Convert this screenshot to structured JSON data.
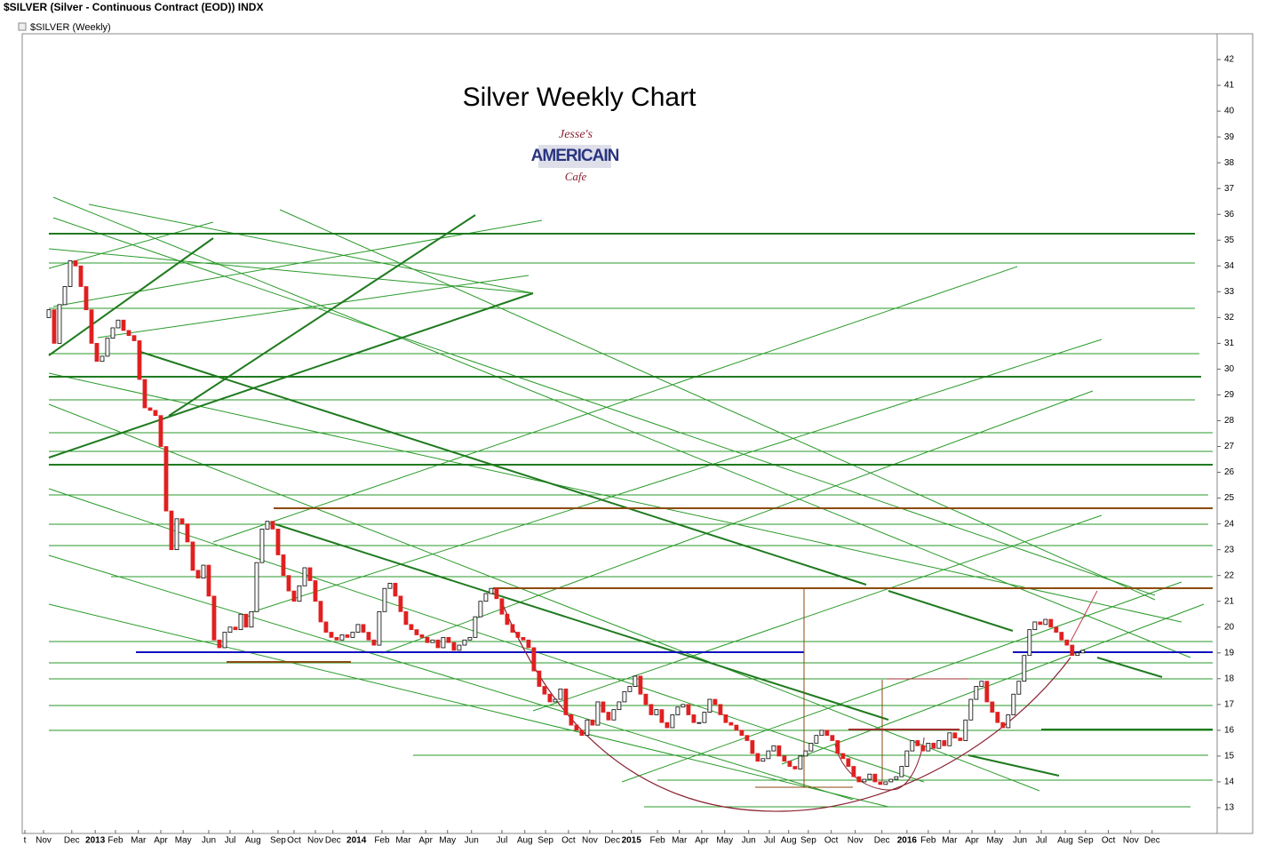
{
  "chart_data": {
    "type": "candlestick",
    "header": "$SILVER (Silver - Continuous Contract (EOD)) INDX",
    "subheader": "$SILVER (Weekly)",
    "title": "Silver Weekly Chart",
    "logo": {
      "top": "Jesse's",
      "middle": "AMERICAIN",
      "bottom": "Cafe"
    },
    "up_color": "#ffffff",
    "down_color": "#e02020",
    "open": [
      32.0,
      32.3,
      31.0,
      32.5,
      33.2,
      34.2,
      34.0,
      33.2,
      32.3,
      31.0,
      30.3,
      30.5,
      31.2,
      31.6,
      31.9,
      31.5,
      31.3,
      31.1,
      29.6,
      28.5,
      28.4,
      28.2,
      27.0,
      24.5,
      23.0,
      24.2,
      24.0,
      23.3,
      22.2,
      21.9,
      22.4,
      21.2,
      19.5,
      19.2,
      19.8,
      20.0,
      19.9,
      20.5,
      20.0,
      20.6,
      22.5,
      23.8,
      24.1,
      23.8,
      22.8,
      22.0,
      21.4,
      21.0,
      21.6,
      22.3,
      21.8,
      21.0,
      20.2,
      19.8,
      19.6,
      19.5,
      19.7,
      19.6,
      19.8,
      20.1,
      19.8,
      19.5,
      19.3,
      20.6,
      21.5,
      21.7,
      21.2,
      20.6,
      20.1,
      19.9,
      19.7,
      19.6,
      19.4,
      19.5,
      19.2,
      19.6,
      19.4,
      19.1,
      19.3,
      19.5,
      19.6,
      20.4,
      21.0,
      21.3,
      21.5,
      21.1,
      20.5,
      20.1,
      19.8,
      19.6,
      19.5,
      19.2,
      18.3,
      17.7,
      17.4,
      17.1,
      17.2,
      17.6,
      16.6,
      16.2,
      16.0,
      15.8,
      16.4,
      16.2,
      17.1,
      16.7,
      16.4,
      16.8,
      17.1,
      17.5,
      17.7,
      18.1,
      17.4,
      17.0,
      16.6,
      16.8,
      16.3,
      16.1,
      16.6,
      16.9,
      17.0,
      16.6,
      16.3,
      16.3,
      16.7,
      17.2,
      17.0,
      16.6,
      16.3,
      16.2,
      16.0,
      15.8,
      15.6,
      15.1,
      14.8,
      14.9,
      15.2,
      15.4,
      15.0,
      14.8,
      14.6,
      14.5,
      15.0,
      15.2,
      15.5,
      15.8,
      16.0,
      15.8,
      15.6,
      15.1,
      14.9,
      14.6,
      14.2,
      14.0,
      14.1,
      14.3,
      14.0,
      13.9,
      14.0,
      14.1,
      14.2,
      14.6,
      15.2,
      15.6,
      15.4,
      15.2,
      15.5,
      15.3,
      15.6,
      15.4,
      15.9,
      15.7,
      15.6,
      16.4,
      17.2,
      17.7,
      17.9,
      17.1,
      16.7,
      16.3,
      16.1,
      16.6,
      17.4,
      17.9,
      18.9,
      19.9,
      20.2,
      20.1,
      20.3,
      20.0,
      19.8,
      19.5,
      19.3,
      18.9,
      19.0
    ],
    "close": [
      32.3,
      31.0,
      32.5,
      33.2,
      34.2,
      34.0,
      33.2,
      32.3,
      31.0,
      30.3,
      30.5,
      31.2,
      31.6,
      31.9,
      31.5,
      31.3,
      31.1,
      29.6,
      28.5,
      28.4,
      28.2,
      27.0,
      24.5,
      23.0,
      24.2,
      24.0,
      23.3,
      22.2,
      21.9,
      22.4,
      21.2,
      19.5,
      19.2,
      19.8,
      20.0,
      19.9,
      20.5,
      20.0,
      20.6,
      22.5,
      23.8,
      24.1,
      23.8,
      22.8,
      22.0,
      21.4,
      21.0,
      21.6,
      22.3,
      21.8,
      21.0,
      20.2,
      19.8,
      19.6,
      19.5,
      19.7,
      19.6,
      19.8,
      20.1,
      19.8,
      19.5,
      19.3,
      20.6,
      21.5,
      21.7,
      21.2,
      20.6,
      20.1,
      19.9,
      19.7,
      19.6,
      19.4,
      19.5,
      19.2,
      19.6,
      19.4,
      19.1,
      19.3,
      19.5,
      19.6,
      20.4,
      21.0,
      21.3,
      21.5,
      21.1,
      20.5,
      20.1,
      19.8,
      19.6,
      19.5,
      19.2,
      18.3,
      17.7,
      17.4,
      17.1,
      17.2,
      17.6,
      16.6,
      16.2,
      16.0,
      15.8,
      16.4,
      16.2,
      17.1,
      16.7,
      16.4,
      16.8,
      17.1,
      17.5,
      17.7,
      18.1,
      17.4,
      17.0,
      16.6,
      16.8,
      16.3,
      16.1,
      16.6,
      16.9,
      17.0,
      16.6,
      16.3,
      16.3,
      16.7,
      17.2,
      17.0,
      16.6,
      16.3,
      16.2,
      16.0,
      15.8,
      15.6,
      15.1,
      14.8,
      14.9,
      15.2,
      15.4,
      15.0,
      14.8,
      14.6,
      14.5,
      15.0,
      15.2,
      15.5,
      15.8,
      16.0,
      15.8,
      15.6,
      15.1,
      14.9,
      14.6,
      14.2,
      14.0,
      14.1,
      14.3,
      14.0,
      13.9,
      14.0,
      14.1,
      14.2,
      14.6,
      15.2,
      15.6,
      15.4,
      15.2,
      15.5,
      15.3,
      15.6,
      15.4,
      15.9,
      15.7,
      15.6,
      16.4,
      17.2,
      17.7,
      17.9,
      17.1,
      16.7,
      16.3,
      16.1,
      16.6,
      17.4,
      17.9,
      18.9,
      19.9,
      20.2,
      20.1,
      20.3,
      20.0,
      19.8,
      19.5,
      19.3,
      18.9,
      19.0,
      19.1
    ],
    "xlim": [
      -5,
      219.2
    ],
    "ylim": [
      12,
      43
    ],
    "yticks": [
      13,
      14,
      15,
      16,
      17,
      18,
      19,
      20,
      21,
      22,
      23,
      24,
      25,
      26,
      27,
      28,
      29,
      30,
      31,
      32,
      33,
      34,
      35,
      36,
      37,
      38,
      39,
      40,
      41,
      42
    ],
    "xticks": [
      {
        "value": -4.5,
        "label": "t"
      },
      {
        "value": -1,
        "label": "Nov"
      },
      {
        "value": 4.3,
        "label": "Dec"
      },
      {
        "value": 8.7,
        "label": "2013"
      },
      {
        "value": 12.5,
        "label": "Feb"
      },
      {
        "value": 16.8,
        "label": "Mar"
      },
      {
        "value": 21,
        "label": "Apr"
      },
      {
        "value": 25.2,
        "label": "May"
      },
      {
        "value": 30,
        "label": "Jun"
      },
      {
        "value": 34,
        "label": "Jul"
      },
      {
        "value": 38.3,
        "label": "Aug"
      },
      {
        "value": 43,
        "label": "Sep"
      },
      {
        "value": 46,
        "label": "Oct"
      },
      {
        "value": 50,
        "label": "Nov"
      },
      {
        "value": 53.3,
        "label": "Dec"
      },
      {
        "value": 57.7,
        "label": "2014"
      },
      {
        "value": 62.5,
        "label": "Feb"
      },
      {
        "value": 66.5,
        "label": "Mar"
      },
      {
        "value": 70.7,
        "label": "Apr"
      },
      {
        "value": 74.8,
        "label": "May"
      },
      {
        "value": 79.3,
        "label": "Jun"
      },
      {
        "value": 85,
        "label": "Jul"
      },
      {
        "value": 89.3,
        "label": "Aug"
      },
      {
        "value": 93.2,
        "label": "Sep"
      },
      {
        "value": 97.5,
        "label": "Oct"
      },
      {
        "value": 101.5,
        "label": "Nov"
      },
      {
        "value": 105.7,
        "label": "Dec"
      },
      {
        "value": 109.3,
        "label": "2015"
      },
      {
        "value": 114.2,
        "label": "Feb"
      },
      {
        "value": 118.3,
        "label": "Mar"
      },
      {
        "value": 122.5,
        "label": "Apr"
      },
      {
        "value": 126.8,
        "label": "May"
      },
      {
        "value": 131.3,
        "label": "Jun"
      },
      {
        "value": 135.2,
        "label": "Jul"
      },
      {
        "value": 138.8,
        "label": "Aug"
      },
      {
        "value": 142.5,
        "label": "Sep"
      },
      {
        "value": 146.8,
        "label": "Oct"
      },
      {
        "value": 151.3,
        "label": "Nov"
      },
      {
        "value": 156.3,
        "label": "Dec"
      },
      {
        "value": 161,
        "label": "2016"
      },
      {
        "value": 165,
        "label": "Feb"
      },
      {
        "value": 169,
        "label": "Mar"
      },
      {
        "value": 173.2,
        "label": "Apr"
      },
      {
        "value": 177.5,
        "label": "May"
      },
      {
        "value": 182.2,
        "label": "Jun"
      },
      {
        "value": 186.2,
        "label": "Jul"
      },
      {
        "value": 190.7,
        "label": "Aug"
      },
      {
        "value": 194.5,
        "label": "Sep"
      },
      {
        "value": 198.8,
        "label": "Oct"
      },
      {
        "value": 203,
        "label": "Nov"
      },
      {
        "value": 207,
        "label": "Dec"
      }
    ]
  }
}
